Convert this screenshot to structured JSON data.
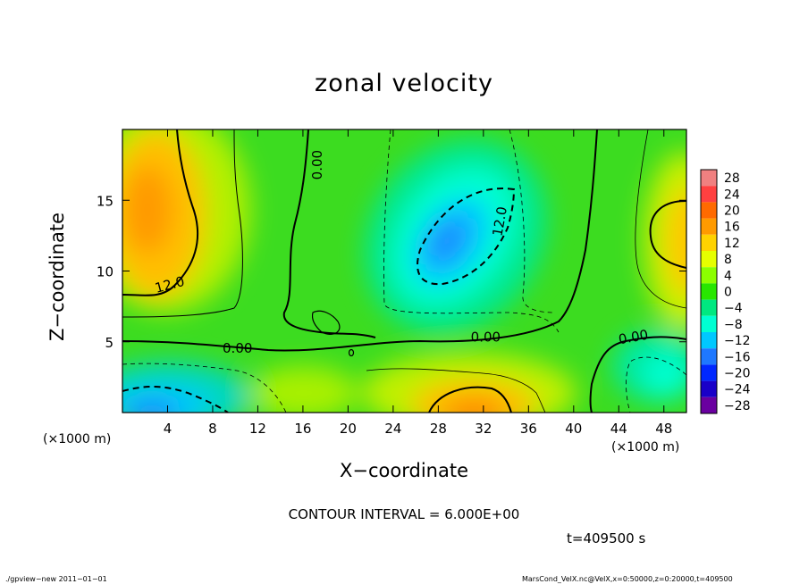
{
  "chart_data": {
    "type": "heatmap",
    "title": "zonal velocity",
    "xlabel": "X−coordinate",
    "ylabel": "Z−coordinate",
    "x_unit_label": "(×1000 m)",
    "y_unit_label": "(×1000 m)",
    "xlim": [
      0,
      50
    ],
    "ylim": [
      0,
      20
    ],
    "x_ticks": [
      4,
      8,
      12,
      16,
      20,
      24,
      28,
      32,
      36,
      40,
      44,
      48
    ],
    "y_ticks": [
      5,
      10,
      15
    ],
    "colorbar": {
      "levels": [
        28,
        24,
        20,
        16,
        12,
        8,
        4,
        0,
        -4,
        -8,
        -12,
        -16,
        -20,
        -24,
        -28
      ],
      "level_labels": [
        "28",
        "24",
        "20",
        "16",
        "12",
        "8",
        "4",
        "0",
        "−4",
        "−8",
        "−12",
        "−16",
        "−20",
        "−24",
        "−28"
      ],
      "colors": [
        "#f08080",
        "#ff4040",
        "#ff6a00",
        "#ff9a00",
        "#ffd200",
        "#e6ff00",
        "#8cff00",
        "#28e600",
        "#00e880",
        "#00ffd2",
        "#00c8ff",
        "#1e78ff",
        "#0028ff",
        "#1a00c8",
        "#6a00a0"
      ]
    },
    "contour_labels": [
      {
        "text": "0.00",
        "x": 17.3,
        "z": 17.5,
        "angle": -90
      },
      {
        "text": "12.0",
        "x": 4.2,
        "z": 9.0,
        "angle": -15
      },
      {
        "text": "12.0",
        "x": 33.5,
        "z": 13.5,
        "angle": -80
      },
      {
        "text": "0.00",
        "x": 10.2,
        "z": 4.5,
        "angle": 0
      },
      {
        "text": "0.00",
        "x": 32.2,
        "z": 5.3,
        "angle": 0
      },
      {
        "text": "0.00",
        "x": 45.3,
        "z": 5.3,
        "angle": -10
      }
    ],
    "contour_interval": "CONTOUR INTERVAL = 6.000E+00",
    "time": "t=409500 s",
    "grid": false
  },
  "footer": {
    "left": "./gpview−new   2011−01−01",
    "right": "MarsCond_VelX.nc@VelX,x=0:50000,z=0:20000,t=409500"
  }
}
